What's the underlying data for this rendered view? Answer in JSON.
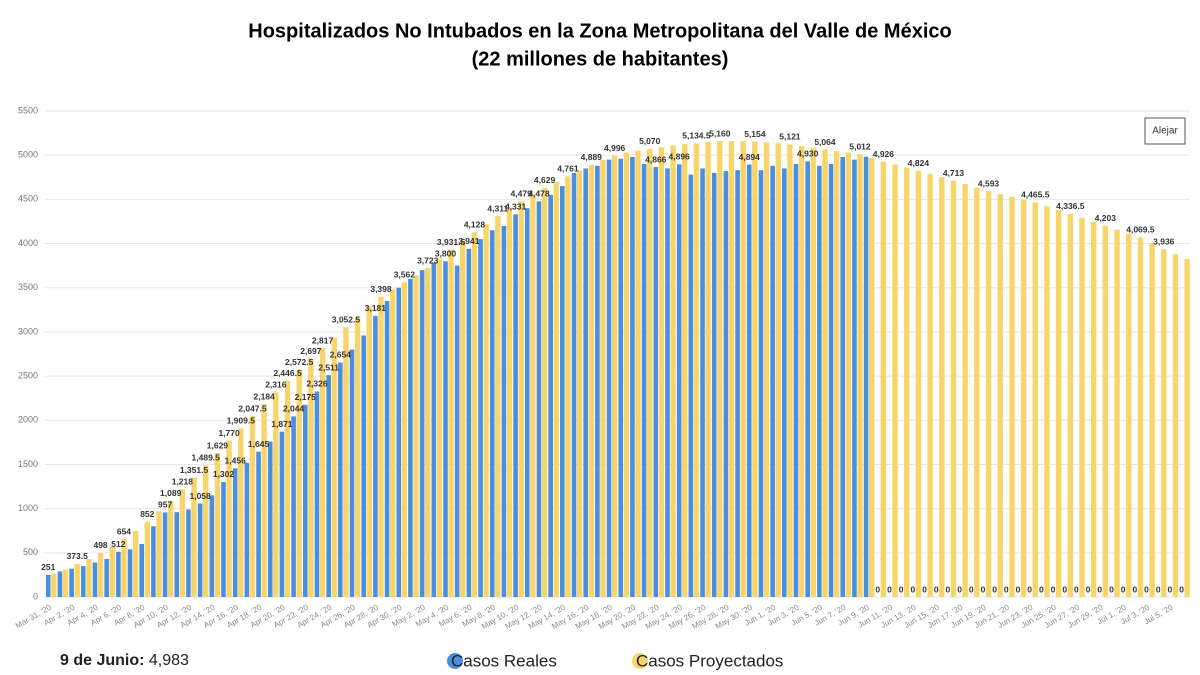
{
  "chart_data": {
    "type": "bar",
    "title": "Hospitalizados No Intubados en la Zona Metropolitana del Valle de México",
    "subtitle": "(22 millones de habitantes)",
    "button": "Alejar",
    "footer": {
      "label": "9 de Junio:",
      "value": "4,983"
    },
    "categories": [
      "Mar 31, '20",
      null,
      "Apr 2, '20",
      null,
      "Apr 4, '20",
      null,
      "Apr 6, '20",
      null,
      "Apr 8, '20",
      null,
      "Apr 10, '20",
      null,
      "Apr 12, '20",
      null,
      "Apr 14, '20",
      null,
      "Apr 16, '20",
      null,
      "Apr 18, '20",
      null,
      "Apr 20, '20",
      null,
      "Apr 22, '20",
      null,
      "Apr 24, '20",
      null,
      "Apr 26, '20",
      null,
      "Apr 28, '20",
      null,
      "Apr 30, '20",
      null,
      "May 2, '20",
      null,
      "May 4, '20",
      null,
      "May 6, '20",
      null,
      "May 8, '20",
      null,
      "May 10, '20",
      null,
      "May 12, '20",
      null,
      "May 14, '20",
      null,
      "May 16, '20",
      null,
      "May 18, '20",
      null,
      "May 20, '20",
      null,
      "May 22, '20",
      null,
      "May 24, '20",
      null,
      "May 26, '20",
      null,
      "May 28, '20",
      null,
      "May 30, '20",
      null,
      "Jun 1, '20",
      null,
      "Jun 3, '20",
      null,
      "Jun 5, '20",
      null,
      "Jun 7, '20",
      null,
      "Jun 9, '20",
      null,
      "Jun 11, '20",
      null,
      "Jun 13, '20",
      null,
      "Jun 15, '20",
      null,
      "Jun 17, '20",
      null,
      "Jun 19, '20",
      null,
      "Jun 21, '20",
      null,
      "Jun 23, '20",
      null,
      "Jun 25, '20",
      null,
      "Jun 27, '20",
      null,
      "Jun 29, '20",
      null,
      "Jul 1, '20",
      null,
      "Jul 3, '20",
      null,
      "Jul 5, '20",
      null
    ],
    "series": [
      {
        "name": "Casos Reales",
        "color": "#4a8ee0",
        "values": [
          251,
          290,
          320,
          350,
          390,
          430,
          512,
          540,
          600,
          800,
          957,
          960,
          990,
          1058,
          1150,
          1302,
          1456,
          1520,
          1645,
          1760,
          1871,
          2044,
          2175,
          2326,
          2511,
          2654,
          2800,
          2960,
          3181,
          3350,
          3500,
          3600,
          3700,
          3780,
          3800,
          3750,
          3941,
          4050,
          4150,
          4200,
          4331,
          4400,
          4478,
          4550,
          4650,
          4800,
          4850,
          4880,
          4950,
          4960,
          4980,
          4900,
          4866,
          4850,
          4896,
          4780,
          4850,
          4800,
          4820,
          4830,
          4894,
          4830,
          4880,
          4850,
          4900,
          4930,
          4880,
          4900,
          4980,
          4950,
          4983,
          0,
          0,
          0,
          0,
          0,
          0,
          0,
          0,
          0,
          0,
          0,
          0,
          0,
          0,
          0,
          0,
          0,
          0,
          0,
          0,
          0,
          0,
          0,
          0,
          0,
          0,
          0
        ],
        "value_labels": [
          "251",
          null,
          null,
          null,
          null,
          null,
          "512",
          null,
          null,
          null,
          "957",
          null,
          null,
          "1,058",
          null,
          "1,302",
          "1,456",
          null,
          "1,645",
          null,
          "1,871",
          "2,044",
          "2,175",
          "2,326",
          "2,511",
          "2,654",
          null,
          null,
          "3,181",
          null,
          null,
          null,
          null,
          null,
          "3,800",
          null,
          "3,941",
          null,
          null,
          null,
          "4,331",
          null,
          "4,478",
          null,
          null,
          null,
          null,
          null,
          null,
          null,
          null,
          null,
          "4,866",
          null,
          "4,896",
          null,
          null,
          null,
          null,
          null,
          "4,894",
          null,
          null,
          null,
          null,
          "4,930",
          null,
          null,
          null,
          null,
          null,
          "0",
          "0",
          "0",
          "0",
          "0",
          "0",
          "0",
          "0",
          "0",
          "0",
          "0",
          "0",
          "0",
          "0",
          "0",
          "0",
          "0",
          "0",
          "0",
          "0",
          "0",
          "0",
          "0",
          "0",
          "0",
          "0",
          "0"
        ]
      },
      {
        "name": "Casos Proyectados",
        "color": "#f8d56b",
        "values": [
          265,
          310,
          373.5,
          430,
          498,
          570,
          654,
          750,
          852,
          970,
          1089,
          1218,
          1351.5,
          1489.5,
          1629,
          1770,
          1909.5,
          2047.5,
          2184,
          2316,
          2446.5,
          2572.5,
          2697,
          2817,
          2935,
          3052.5,
          3170,
          3290,
          3398,
          3480,
          3562,
          3640,
          3723,
          3830,
          3931.5,
          4030,
          4128,
          4220,
          4311,
          4395,
          4479,
          4555,
          4629,
          4695,
          4761,
          4825,
          4889,
          4945,
          4996,
          5030,
          5050,
          5070,
          5090,
          5110,
          5125,
          5134.5,
          5148,
          5160,
          5160,
          5158,
          5154,
          5145,
          5135,
          5121,
          5105,
          5085,
          5064,
          5045,
          5030,
          5012,
          4970,
          4926,
          4895,
          4860,
          4824,
          4788,
          4750,
          4713,
          4673,
          4633,
          4593,
          4561,
          4529,
          4497,
          4465.5,
          4422,
          4379,
          4336.5,
          4292,
          4248,
          4203,
          4158,
          4114,
          4069.5,
          4003,
          3936,
          3880,
          3825
        ],
        "value_labels": [
          null,
          null,
          "373.5",
          null,
          "498",
          null,
          "654",
          null,
          "852",
          null,
          "1,089",
          "1,218",
          "1,351.5",
          "1,489.5",
          "1,629",
          "1,770",
          "1,909.5",
          "2,047.5",
          "2,184",
          "2,316",
          "2,446.5",
          "2,572.5",
          "2,697",
          "2,817",
          null,
          "3,052.5",
          null,
          null,
          "3,398",
          null,
          "3,562",
          null,
          "3,723",
          null,
          "3,931.5",
          null,
          "4,128",
          null,
          "4,311",
          null,
          "4,479",
          null,
          "4,629",
          null,
          "4,761",
          null,
          "4,889",
          null,
          "4,996",
          null,
          null,
          "5,070",
          null,
          null,
          null,
          "5,134.5",
          null,
          "5,160",
          null,
          null,
          "5,154",
          null,
          null,
          "5,121",
          null,
          null,
          "5,064",
          null,
          null,
          "5,012",
          null,
          "4,926",
          null,
          null,
          "4,824",
          null,
          null,
          "4,713",
          null,
          null,
          "4,593",
          null,
          null,
          null,
          "4,465.5",
          null,
          null,
          "4,336.5",
          null,
          null,
          "4,203",
          null,
          null,
          "4,069.5",
          null,
          "3,936",
          null,
          null
        ]
      }
    ],
    "ylim": [
      0,
      5500
    ],
    "yticks": [
      0,
      500,
      1000,
      1500,
      2000,
      2500,
      3000,
      3500,
      4000,
      4500,
      5000,
      5500
    ],
    "grid": true
  }
}
